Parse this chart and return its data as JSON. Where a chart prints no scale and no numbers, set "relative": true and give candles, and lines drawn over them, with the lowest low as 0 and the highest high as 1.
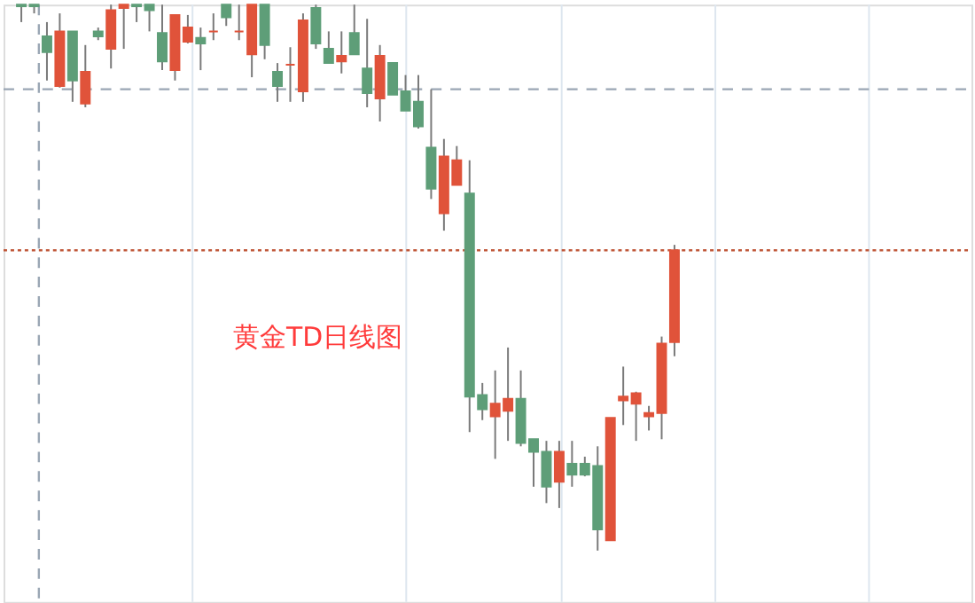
{
  "chart_data": {
    "type": "candlestick",
    "relative": true,
    "grid": "x",
    "annotations": [
      "黄金TD日线图"
    ],
    "categories": [
      null,
      null,
      null,
      null,
      null,
      null,
      null,
      null,
      null,
      null,
      null,
      null,
      null,
      null,
      null,
      null,
      null,
      null,
      null,
      null,
      null,
      null,
      null,
      null,
      null,
      null,
      null,
      null,
      null,
      null,
      null,
      null,
      null,
      null,
      null,
      null,
      null,
      null,
      null,
      null,
      null,
      null,
      null,
      null,
      null,
      null,
      null,
      null,
      null,
      null,
      null,
      null
    ],
    "ohlc": [
      [
        1,
        1,
        0.968,
        0.997
      ],
      [
        1,
        1,
        0.984,
        0.997
      ],
      [
        0.942,
        0.968,
        0.861,
        0.913
      ],
      [
        0.851,
        0.984,
        0.848,
        0.951
      ],
      [
        0.951,
        0.951,
        0.822,
        0.861
      ],
      [
        0.819,
        0.926,
        0.812,
        0.877
      ],
      [
        0.951,
        0.958,
        0.935,
        0.942
      ],
      [
        0.919,
        1,
        0.883,
        0.99
      ],
      [
        0.994,
        1,
        0.919,
        1
      ],
      [
        1,
        1,
        0.968,
        0.997
      ],
      [
        1,
        1,
        0.951,
        0.99
      ],
      [
        0.948,
        1,
        0.88,
        0.896
      ],
      [
        0.88,
        0.981,
        0.861,
        0.981
      ],
      [
        0.932,
        0.981,
        0.929,
        0.958
      ],
      [
        0.939,
        0.958,
        0.88,
        0.929
      ],
      [
        0.951,
        0.984,
        0.935,
        0.951
      ],
      [
        1,
        1,
        0.961,
        0.977
      ],
      [
        0.951,
        1,
        0.935,
        0.951
      ],
      [
        0.909,
        1,
        0.867,
        1
      ],
      [
        1,
        1,
        0.9,
        0.926
      ],
      [
        0.877,
        0.893,
        0.822,
        0.851
      ],
      [
        0.89,
        0.922,
        0.822,
        0.89
      ],
      [
        0.841,
        0.984,
        0.822,
        0.971
      ],
      [
        0.994,
        1,
        0.919,
        0.929
      ],
      [
        0.919,
        0.951,
        0.893,
        0.893
      ],
      [
        0.896,
        0.951,
        0.874,
        0.906
      ],
      [
        0.948,
        1,
        0.909,
        0.909
      ],
      [
        0.883,
        0.974,
        0.812,
        0.838
      ],
      [
        0.828,
        0.926,
        0.786,
        0.906
      ],
      [
        0.893,
        0.893,
        0.835,
        0.835
      ],
      [
        0.841,
        0.871,
        0.806,
        0.806
      ],
      [
        0.822,
        0.871,
        0.773,
        0.777
      ],
      [
        0.738,
        0.845,
        0.644,
        0.663
      ],
      [
        0.618,
        0.754,
        0.586,
        0.722
      ],
      [
        0.67,
        0.741,
        0.67,
        0.715
      ],
      [
        0.654,
        0.715,
        0.217,
        0.282
      ],
      [
        0.285,
        0.307,
        0.239,
        0.259
      ],
      [
        0.246,
        0.33,
        0.168,
        0.269
      ],
      [
        0.256,
        0.372,
        0.201,
        0.278
      ],
      [
        0.278,
        0.33,
        0.191,
        0.197
      ],
      [
        0.204,
        0.204,
        0.117,
        0.181
      ],
      [
        0.181,
        0.201,
        0.087,
        0.117
      ],
      [
        0.126,
        0.201,
        0.078,
        0.181
      ],
      [
        0.159,
        0.201,
        0.117,
        0.139
      ],
      [
        0.159,
        0.172,
        0.136,
        0.139
      ],
      [
        0.155,
        0.191,
        0,
        0.039
      ],
      [
        0.019,
        0.243,
        0.019,
        0.243
      ],
      [
        0.275,
        0.337,
        0.23,
        0.282
      ],
      [
        0.269,
        0.291,
        0.201,
        0.288
      ],
      [
        0.246,
        0.265,
        0.22,
        0.252
      ],
      [
        0.252,
        0.392,
        0.204,
        0.379
      ],
      [
        0.382,
        0.56,
        0.356,
        0.55
      ]
    ],
    "colors": [
      "#5e9e78",
      "#5e9e78",
      "#5e9e78",
      "#e0533a",
      "#5e9e78",
      "#e0533a",
      "#5e9e78",
      "#e0533a",
      "#e0533a",
      "#5e9e78",
      "#5e9e78",
      "#5e9e78",
      "#e0533a",
      "#e0533a",
      "#5e9e78",
      "#e0533a",
      "#5e9e78",
      "#e0533a",
      "#e0533a",
      "#5e9e78",
      "#5e9e78",
      "#e0533a",
      "#e0533a",
      "#5e9e78",
      "#5e9e78",
      "#e0533a",
      "#5e9e78",
      "#5e9e78",
      "#e0533a",
      "#5e9e78",
      "#5e9e78",
      "#5e9e78",
      "#5e9e78",
      "#e0533a",
      "#e0533a",
      "#5e9e78",
      "#5e9e78",
      "#e0533a",
      "#e0533a",
      "#5e9e78",
      "#5e9e78",
      "#5e9e78",
      "#e0533a",
      "#5e9e78",
      "#5e9e78",
      "#5e9e78",
      "#e0533a",
      "#e0533a",
      "#e0533a",
      "#e0533a",
      "#e0533a",
      "#e0533a"
    ],
    "ref_lines": [
      {
        "axis": "y",
        "value": 0.845,
        "color": "#9aa6b4",
        "line_style": "dashed"
      },
      {
        "axis": "y",
        "value": 0.55,
        "color": "#c0583a",
        "line_style": "dotted"
      }
    ]
  }
}
